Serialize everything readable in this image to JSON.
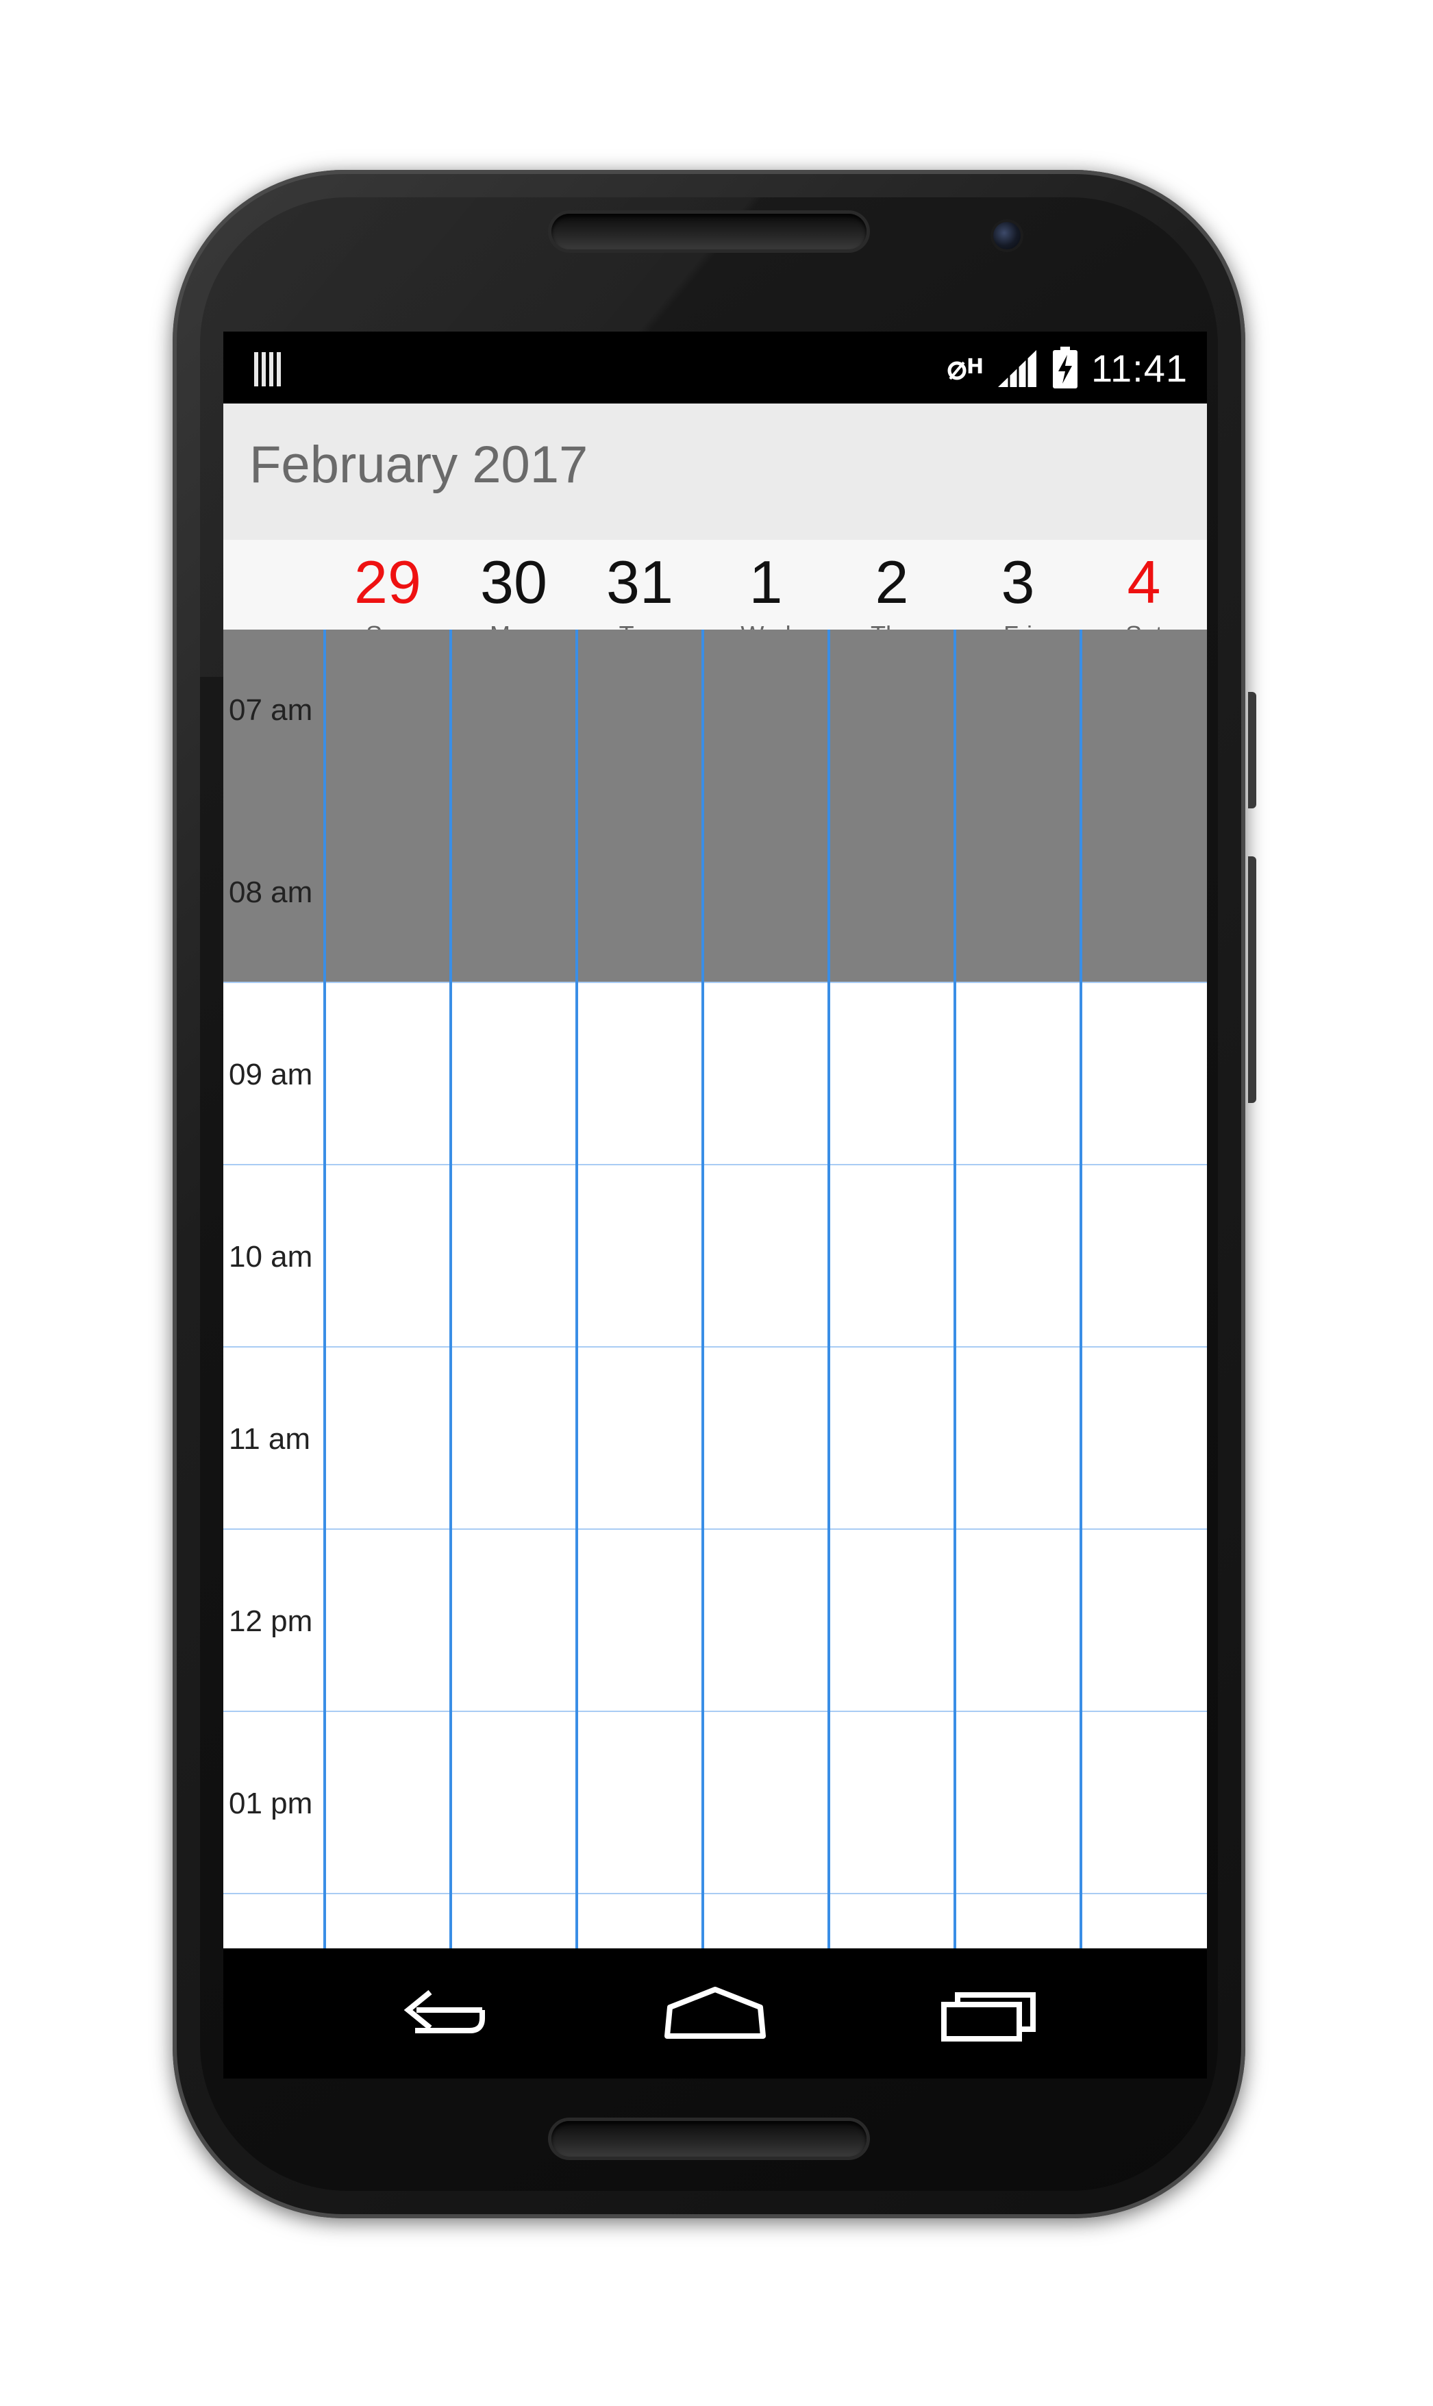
{
  "status_bar": {
    "time": "11:41",
    "notification_icon": "barcode-icon",
    "icons": [
      "data-off-icon",
      "signal-icon",
      "battery-charging-icon"
    ]
  },
  "app_bar": {
    "title": "February 2017"
  },
  "week": {
    "days": [
      {
        "number": "29",
        "name": "Sun",
        "weekend": true
      },
      {
        "number": "30",
        "name": "Mon",
        "weekend": false
      },
      {
        "number": "31",
        "name": "Tue",
        "weekend": false
      },
      {
        "number": "1",
        "name": "Wed",
        "weekend": false
      },
      {
        "number": "2",
        "name": "Thu",
        "weekend": false
      },
      {
        "number": "3",
        "name": "Fri",
        "weekend": false
      },
      {
        "number": "4",
        "name": "Sat",
        "weekend": true
      }
    ]
  },
  "timeline": {
    "hours": [
      "07 am",
      "08 am",
      "09 am",
      "10 am",
      "11 am",
      "12 pm",
      "01 pm"
    ],
    "non_working_hours": [
      "07 am",
      "08 am"
    ]
  },
  "colors": {
    "weekend_number": "#ee1111",
    "grid_line": "#3a8ee6",
    "non_working": "#808080"
  },
  "nav_bar": {
    "icons": [
      "back-icon",
      "home-icon",
      "recent-apps-icon"
    ]
  }
}
